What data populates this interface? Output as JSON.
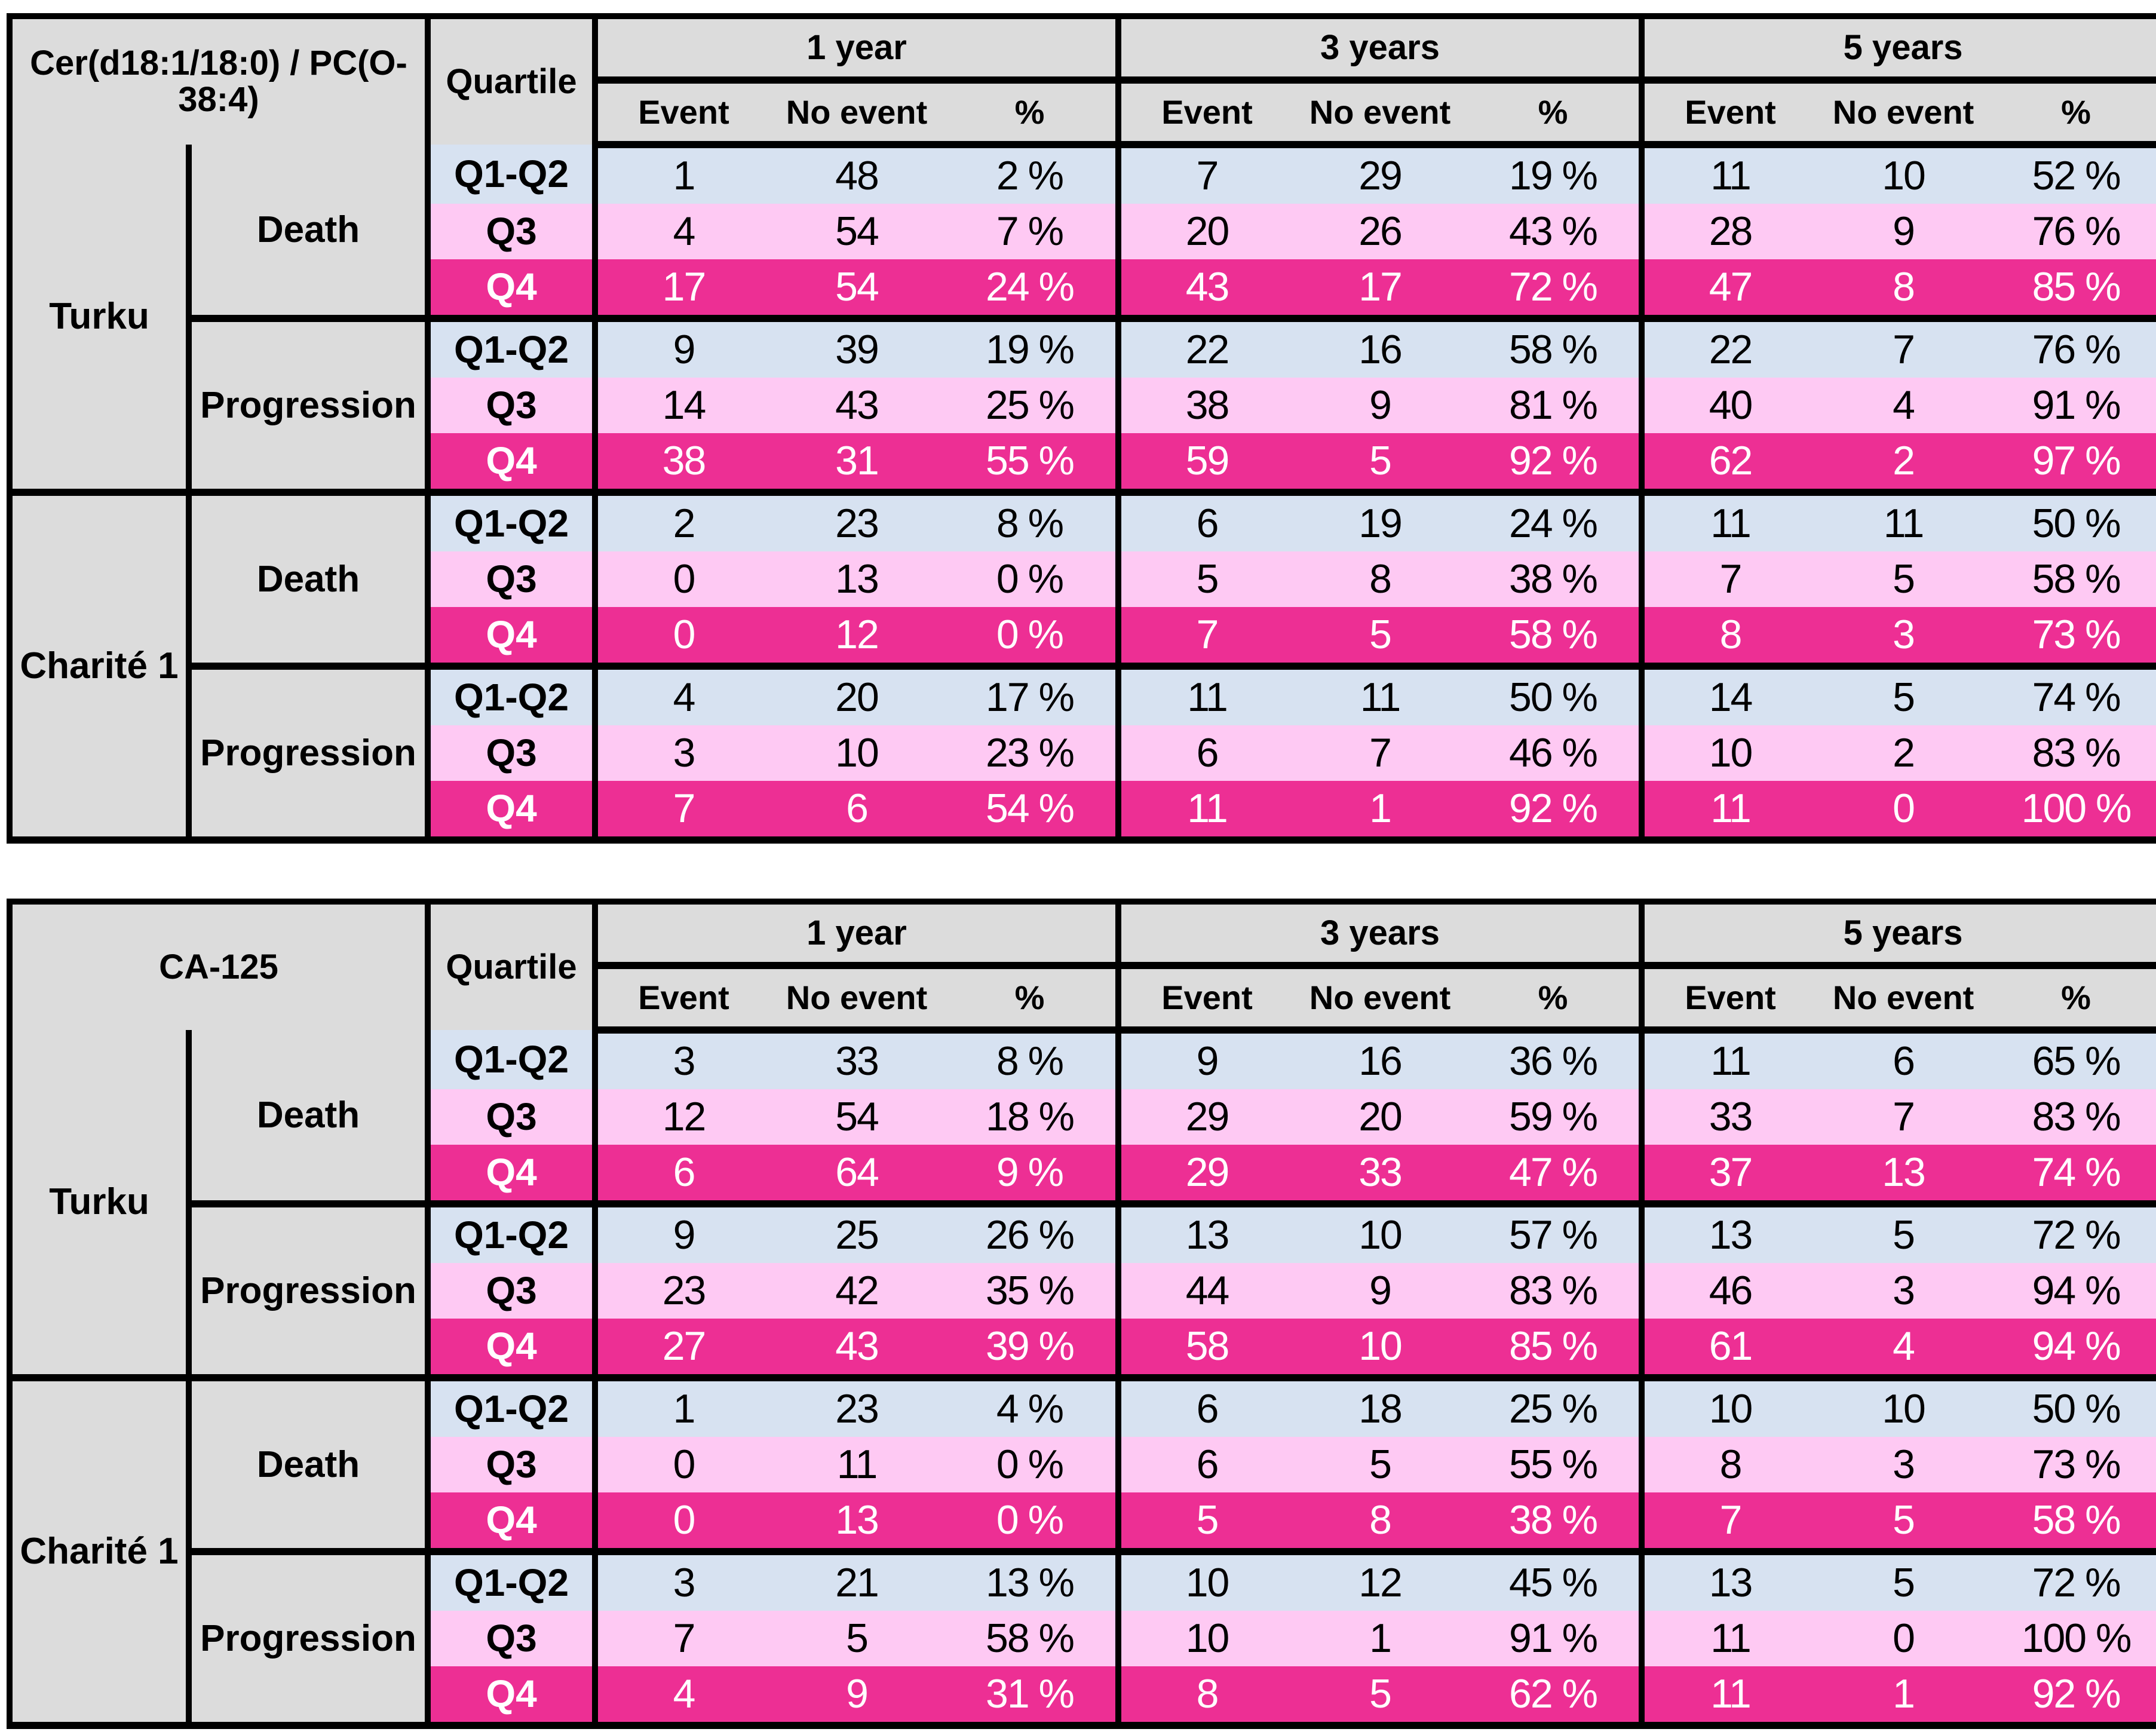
{
  "colors": {
    "header_bg": "#dcdcdc",
    "row_q1q2_blue": "#d7e2f1",
    "row_q3_pink": "#fec9f3",
    "row_q4_magenta": "#ed2f94",
    "q4_text": "#ffffff",
    "border": "#000000"
  },
  "chart_data": [
    {
      "type": "table",
      "title": "Cer(d18:1/18:0) / PC(O-38:4)",
      "quartile_header": "Quartile",
      "year_groups": [
        "1 year",
        "3 years",
        "5 years"
      ],
      "sub_headers": [
        "Event",
        "No event",
        "%"
      ],
      "sites": [
        {
          "name": "Turku",
          "outcomes": [
            {
              "name": "Death",
              "rows": [
                {
                  "quartile": "Q1-Q2",
                  "values": [
                    "1",
                    "48",
                    "2 %",
                    "7",
                    "29",
                    "19 %",
                    "11",
                    "10",
                    "52 %"
                  ]
                },
                {
                  "quartile": "Q3",
                  "values": [
                    "4",
                    "54",
                    "7 %",
                    "20",
                    "26",
                    "43 %",
                    "28",
                    "9",
                    "76 %"
                  ]
                },
                {
                  "quartile": "Q4",
                  "values": [
                    "17",
                    "54",
                    "24 %",
                    "43",
                    "17",
                    "72 %",
                    "47",
                    "8",
                    "85 %"
                  ]
                }
              ]
            },
            {
              "name": "Progression",
              "rows": [
                {
                  "quartile": "Q1-Q2",
                  "values": [
                    "9",
                    "39",
                    "19 %",
                    "22",
                    "16",
                    "58 %",
                    "22",
                    "7",
                    "76 %"
                  ]
                },
                {
                  "quartile": "Q3",
                  "values": [
                    "14",
                    "43",
                    "25 %",
                    "38",
                    "9",
                    "81 %",
                    "40",
                    "4",
                    "91 %"
                  ]
                },
                {
                  "quartile": "Q4",
                  "values": [
                    "38",
                    "31",
                    "55 %",
                    "59",
                    "5",
                    "92 %",
                    "62",
                    "2",
                    "97 %"
                  ]
                }
              ]
            }
          ]
        },
        {
          "name": "Charité 1",
          "outcomes": [
            {
              "name": "Death",
              "rows": [
                {
                  "quartile": "Q1-Q2",
                  "values": [
                    "2",
                    "23",
                    "8 %",
                    "6",
                    "19",
                    "24 %",
                    "11",
                    "11",
                    "50 %"
                  ]
                },
                {
                  "quartile": "Q3",
                  "values": [
                    "0",
                    "13",
                    "0 %",
                    "5",
                    "8",
                    "38 %",
                    "7",
                    "5",
                    "58 %"
                  ]
                },
                {
                  "quartile": "Q4",
                  "values": [
                    "0",
                    "12",
                    "0 %",
                    "7",
                    "5",
                    "58 %",
                    "8",
                    "3",
                    "73 %"
                  ]
                }
              ]
            },
            {
              "name": "Progression",
              "rows": [
                {
                  "quartile": "Q1-Q2",
                  "values": [
                    "4",
                    "20",
                    "17 %",
                    "11",
                    "11",
                    "50 %",
                    "14",
                    "5",
                    "74 %"
                  ]
                },
                {
                  "quartile": "Q3",
                  "values": [
                    "3",
                    "10",
                    "23 %",
                    "6",
                    "7",
                    "46 %",
                    "10",
                    "2",
                    "83 %"
                  ]
                },
                {
                  "quartile": "Q4",
                  "values": [
                    "7",
                    "6",
                    "54 %",
                    "11",
                    "1",
                    "92 %",
                    "11",
                    "0",
                    "100 %"
                  ]
                }
              ]
            }
          ]
        }
      ]
    },
    {
      "type": "table",
      "title": "CA-125",
      "quartile_header": "Quartile",
      "year_groups": [
        "1 year",
        "3 years",
        "5 years"
      ],
      "sub_headers": [
        "Event",
        "No event",
        "%"
      ],
      "sites": [
        {
          "name": "Turku",
          "outcomes": [
            {
              "name": "Death",
              "rows": [
                {
                  "quartile": "Q1-Q2",
                  "values": [
                    "3",
                    "33",
                    "8 %",
                    "9",
                    "16",
                    "36 %",
                    "11",
                    "6",
                    "65 %"
                  ]
                },
                {
                  "quartile": "Q3",
                  "values": [
                    "12",
                    "54",
                    "18 %",
                    "29",
                    "20",
                    "59 %",
                    "33",
                    "7",
                    "83 %"
                  ]
                },
                {
                  "quartile": "Q4",
                  "values": [
                    "6",
                    "64",
                    "9 %",
                    "29",
                    "33",
                    "47 %",
                    "37",
                    "13",
                    "74 %"
                  ]
                }
              ]
            },
            {
              "name": "Progression",
              "rows": [
                {
                  "quartile": "Q1-Q2",
                  "values": [
                    "9",
                    "25",
                    "26 %",
                    "13",
                    "10",
                    "57 %",
                    "13",
                    "5",
                    "72 %"
                  ]
                },
                {
                  "quartile": "Q3",
                  "values": [
                    "23",
                    "42",
                    "35 %",
                    "44",
                    "9",
                    "83 %",
                    "46",
                    "3",
                    "94 %"
                  ]
                },
                {
                  "quartile": "Q4",
                  "values": [
                    "27",
                    "43",
                    "39 %",
                    "58",
                    "10",
                    "85 %",
                    "61",
                    "4",
                    "94 %"
                  ]
                }
              ]
            }
          ]
        },
        {
          "name": "Charité 1",
          "outcomes": [
            {
              "name": "Death",
              "rows": [
                {
                  "quartile": "Q1-Q2",
                  "values": [
                    "1",
                    "23",
                    "4 %",
                    "6",
                    "18",
                    "25 %",
                    "10",
                    "10",
                    "50 %"
                  ]
                },
                {
                  "quartile": "Q3",
                  "values": [
                    "0",
                    "11",
                    "0 %",
                    "6",
                    "5",
                    "55 %",
                    "8",
                    "3",
                    "73 %"
                  ]
                },
                {
                  "quartile": "Q4",
                  "values": [
                    "0",
                    "13",
                    "0 %",
                    "5",
                    "8",
                    "38 %",
                    "7",
                    "5",
                    "58 %"
                  ]
                }
              ]
            },
            {
              "name": "Progression",
              "rows": [
                {
                  "quartile": "Q1-Q2",
                  "values": [
                    "3",
                    "21",
                    "13 %",
                    "10",
                    "12",
                    "45 %",
                    "13",
                    "5",
                    "72 %"
                  ]
                },
                {
                  "quartile": "Q3",
                  "values": [
                    "7",
                    "5",
                    "58 %",
                    "10",
                    "1",
                    "91 %",
                    "11",
                    "0",
                    "100 %"
                  ]
                },
                {
                  "quartile": "Q4",
                  "values": [
                    "4",
                    "9",
                    "31 %",
                    "8",
                    "5",
                    "62 %",
                    "11",
                    "1",
                    "92 %"
                  ]
                }
              ]
            }
          ]
        }
      ]
    }
  ]
}
